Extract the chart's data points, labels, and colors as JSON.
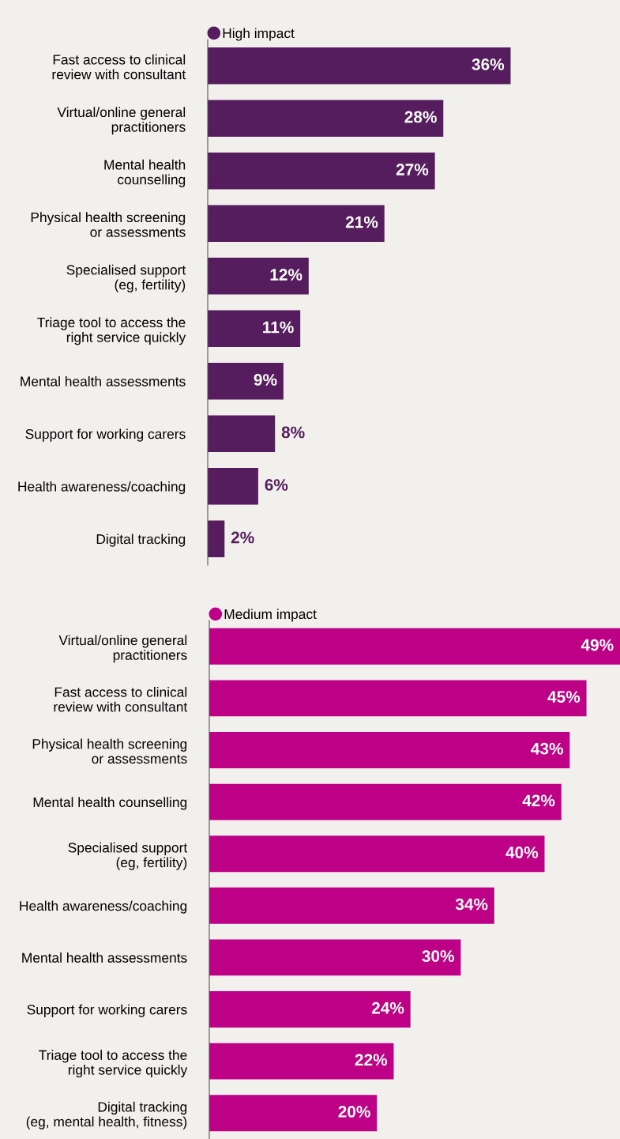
{
  "chart_data": [
    {
      "type": "bar",
      "orientation": "horizontal",
      "legend": "top left",
      "categories": [
        "Fast access to clinical\nreview with consultant",
        "Virtual/online general\npractitioners",
        "Mental health\ncounselling",
        "Physical health screening\nor assessments",
        "Specialised support\n(eg, fertility)",
        "Triage tool to access the\nright service quickly",
        "Mental health assessments",
        "Support for working carers",
        "Health awareness/coaching",
        "Digital tracking"
      ],
      "series": [
        {
          "name": "High impact",
          "color": "#561d5e",
          "values": [
            36,
            28,
            27,
            21,
            12,
            11,
            9,
            8,
            6,
            2
          ],
          "value_labels": [
            "36%",
            "28%",
            "27%",
            "21%",
            "12%",
            "11%",
            "9%",
            "8%",
            "6%",
            "2%"
          ]
        }
      ]
    },
    {
      "type": "bar",
      "orientation": "horizontal",
      "legend": "top left",
      "categories": [
        "Virtual/online general\npractitioners",
        "Fast access to clinical\nreview with consultant",
        "Physical health screening\nor assessments",
        "Mental health counselling",
        "Specialised support\n(eg, fertility)",
        "Health awareness/coaching",
        "Mental health assessments",
        "Support for working carers",
        "Triage tool to access the\nright service quickly",
        "Digital tracking\n(eg, mental health, fitness)"
      ],
      "series": [
        {
          "name": "Medium impact",
          "color": "#be0087",
          "values": [
            49,
            45,
            43,
            42,
            40,
            34,
            30,
            24,
            22,
            20
          ],
          "value_labels": [
            "49%",
            "45%",
            "43%",
            "42%",
            "40%",
            "34%",
            "30%",
            "24%",
            "22%",
            "20%"
          ]
        }
      ]
    }
  ]
}
